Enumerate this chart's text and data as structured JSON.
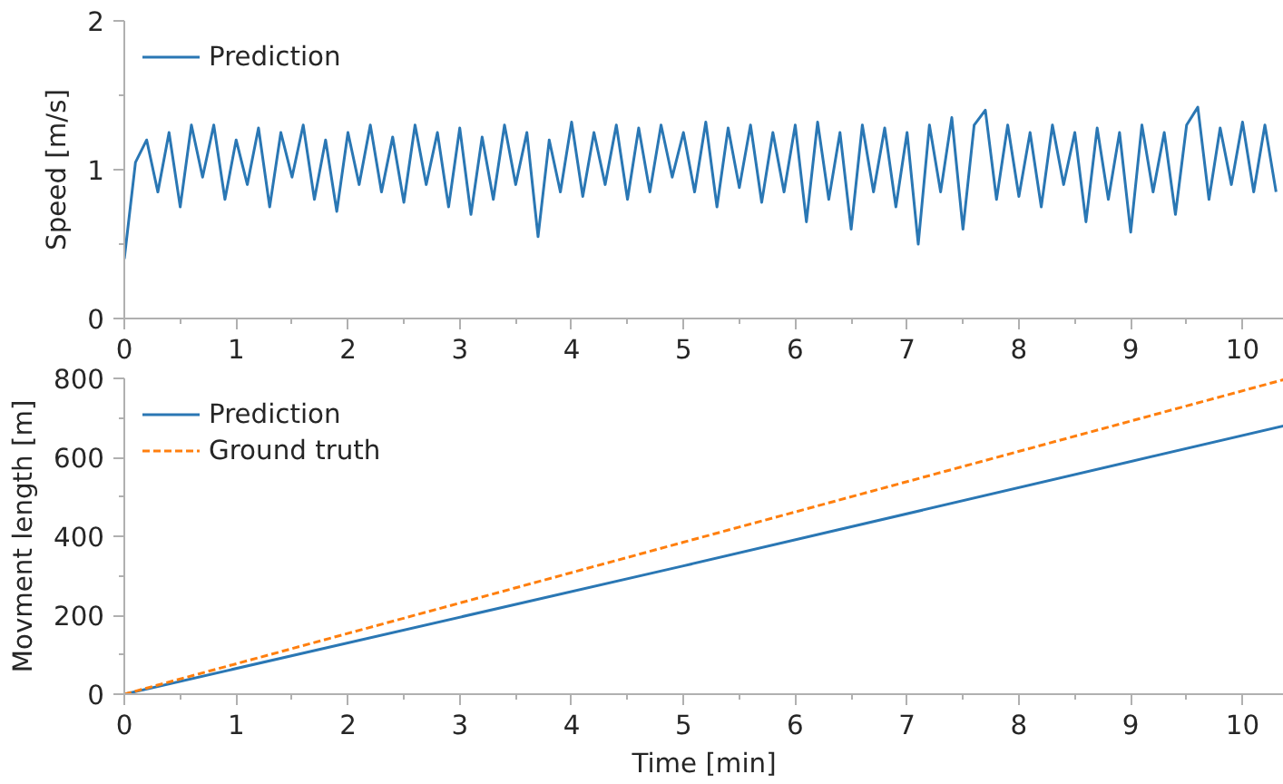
{
  "chart_data": [
    {
      "type": "line",
      "ylabel": "Speed [m/s]",
      "xlim": [
        0,
        10.37
      ],
      "xticks": [
        0,
        1,
        2,
        3,
        4,
        5,
        6,
        7,
        8,
        9,
        10
      ],
      "ylim": [
        0,
        2
      ],
      "yticks": [
        0,
        1,
        2
      ],
      "legend": "top left",
      "grid": false,
      "x": [
        0,
        0.1,
        0.2,
        0.3,
        0.4,
        0.5,
        0.6,
        0.7,
        0.8,
        0.9,
        1.0,
        1.1,
        1.2,
        1.3,
        1.4,
        1.5,
        1.6,
        1.7,
        1.8,
        1.9,
        2.0,
        2.1,
        2.2,
        2.3,
        2.4,
        2.5,
        2.6,
        2.7,
        2.8,
        2.9,
        3.0,
        3.1,
        3.2,
        3.3,
        3.4,
        3.5,
        3.6,
        3.7,
        3.8,
        3.9,
        4.0,
        4.1,
        4.2,
        4.3,
        4.4,
        4.5,
        4.6,
        4.7,
        4.8,
        4.9,
        5.0,
        5.1,
        5.2,
        5.3,
        5.4,
        5.5,
        5.6,
        5.7,
        5.8,
        5.9,
        6.0,
        6.1,
        6.2,
        6.3,
        6.4,
        6.5,
        6.6,
        6.7,
        6.8,
        6.9,
        7.0,
        7.1,
        7.2,
        7.3,
        7.4,
        7.5,
        7.6,
        7.7,
        7.8,
        7.9,
        8.0,
        8.1,
        8.2,
        8.3,
        8.4,
        8.5,
        8.6,
        8.7,
        8.8,
        8.9,
        9.0,
        9.1,
        9.2,
        9.3,
        9.4,
        9.5,
        9.6,
        9.7,
        9.8,
        9.9,
        10.0,
        10.1,
        10.2,
        10.3
      ],
      "series": [
        {
          "name": "Prediction",
          "color": "#2a77b4",
          "values": [
            0.4,
            1.05,
            1.2,
            0.85,
            1.25,
            0.75,
            1.3,
            0.95,
            1.3,
            0.8,
            1.2,
            0.9,
            1.28,
            0.75,
            1.25,
            0.95,
            1.3,
            0.8,
            1.2,
            0.72,
            1.25,
            0.9,
            1.3,
            0.85,
            1.22,
            0.78,
            1.3,
            0.9,
            1.25,
            0.75,
            1.28,
            0.7,
            1.22,
            0.8,
            1.3,
            0.9,
            1.25,
            0.55,
            1.2,
            0.85,
            1.32,
            0.82,
            1.25,
            0.9,
            1.3,
            0.8,
            1.28,
            0.85,
            1.3,
            0.95,
            1.25,
            0.85,
            1.32,
            0.75,
            1.28,
            0.88,
            1.3,
            0.78,
            1.25,
            0.85,
            1.3,
            0.65,
            1.32,
            0.8,
            1.25,
            0.6,
            1.3,
            0.85,
            1.28,
            0.75,
            1.25,
            0.5,
            1.3,
            0.85,
            1.35,
            0.6,
            1.3,
            1.4,
            0.8,
            1.3,
            0.82,
            1.25,
            0.75,
            1.3,
            0.9,
            1.25,
            0.65,
            1.28,
            0.8,
            1.25,
            0.58,
            1.3,
            0.85,
            1.25,
            0.7,
            1.3,
            1.42,
            0.8,
            1.28,
            0.9,
            1.32,
            0.85,
            1.3,
            0.85
          ]
        }
      ]
    },
    {
      "type": "line",
      "xlabel": "Time [min]",
      "ylabel": "Movment length [m]",
      "xlim": [
        0,
        10.37
      ],
      "xticks": [
        0,
        1,
        2,
        3,
        4,
        5,
        6,
        7,
        8,
        9,
        10
      ],
      "ylim": [
        0,
        800
      ],
      "yticks": [
        0,
        200,
        400,
        600,
        800
      ],
      "legend": "top left",
      "grid": false,
      "series": [
        {
          "name": "Prediction",
          "color": "#2a77b4",
          "x": [
            0,
            5,
            10.37
          ],
          "values": [
            0,
            325,
            680
          ],
          "line_style": "solid"
        },
        {
          "name": "Ground truth",
          "color": "#ff7f0e",
          "x": [
            0,
            5,
            10.37
          ],
          "values": [
            0,
            385,
            797
          ],
          "line_style": "dashed"
        }
      ]
    }
  ]
}
